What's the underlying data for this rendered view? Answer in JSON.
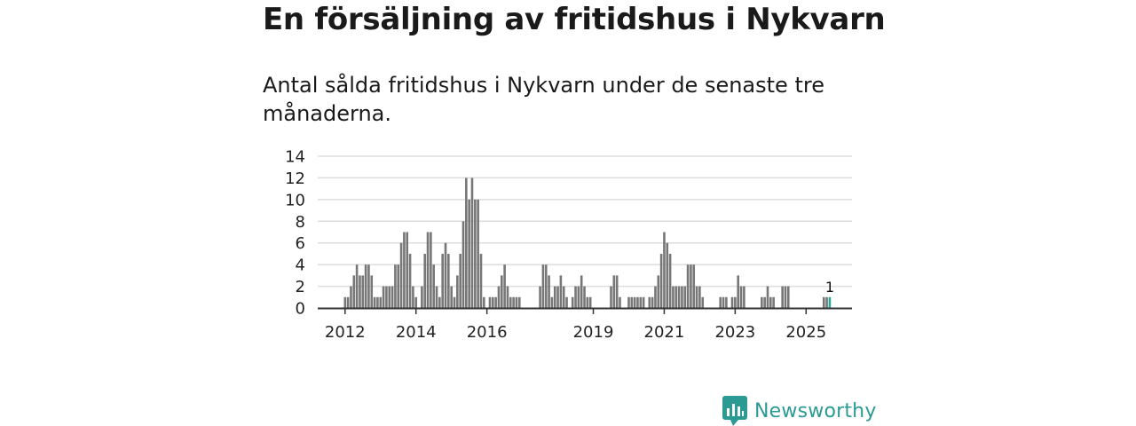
{
  "header": {
    "title": "En försäljning av fritidshus i Nykvarn",
    "subtitle": "Antal sålda fritidshus i Nykvarn under de senaste tre månaderna."
  },
  "brand": {
    "name": "Newsworthy",
    "color": "#2b9a93",
    "icon": "newsworthy-chart-logo-icon"
  },
  "chart_data": {
    "type": "bar",
    "title": "",
    "xlabel": "",
    "ylabel": "",
    "ylim": [
      0,
      14
    ],
    "yticks": [
      0,
      2,
      4,
      6,
      8,
      10,
      12,
      14
    ],
    "xtick_labels": [
      "2012",
      "2014",
      "2016",
      "2019",
      "2021",
      "2023",
      "2025"
    ],
    "grid": true,
    "bar_color": "#777777",
    "highlight_color": "#2ba598",
    "highlight_label": "1",
    "highlight_index": 164,
    "start": "2012-01",
    "frequency": "monthly",
    "values": [
      1,
      1,
      2,
      3,
      4,
      3,
      3,
      4,
      4,
      3,
      1,
      1,
      1,
      2,
      2,
      2,
      2,
      4,
      4,
      6,
      7,
      7,
      5,
      2,
      1,
      0,
      2,
      5,
      7,
      7,
      4,
      2,
      1,
      5,
      6,
      5,
      2,
      1,
      3,
      5,
      8,
      12,
      10,
      12,
      10,
      10,
      5,
      1,
      0,
      1,
      1,
      1,
      2,
      3,
      4,
      2,
      1,
      1,
      1,
      1,
      0,
      0,
      0,
      0,
      0,
      0,
      2,
      4,
      4,
      3,
      1,
      2,
      2,
      3,
      2,
      1,
      0,
      1,
      2,
      2,
      3,
      2,
      1,
      1,
      0,
      0,
      0,
      0,
      0,
      0,
      2,
      3,
      3,
      1,
      0,
      0,
      1,
      1,
      1,
      1,
      1,
      1,
      0,
      1,
      1,
      2,
      3,
      5,
      7,
      6,
      5,
      2,
      2,
      2,
      2,
      2,
      4,
      4,
      4,
      2,
      2,
      1,
      0,
      0,
      0,
      0,
      0,
      1,
      1,
      1,
      0,
      1,
      1,
      3,
      2,
      2,
      0,
      0,
      0,
      0,
      0,
      1,
      1,
      2,
      1,
      1,
      0,
      0,
      2,
      2,
      2,
      0,
      0,
      0,
      0,
      0,
      0,
      0,
      0,
      0,
      0,
      0,
      1,
      1,
      1
    ]
  }
}
